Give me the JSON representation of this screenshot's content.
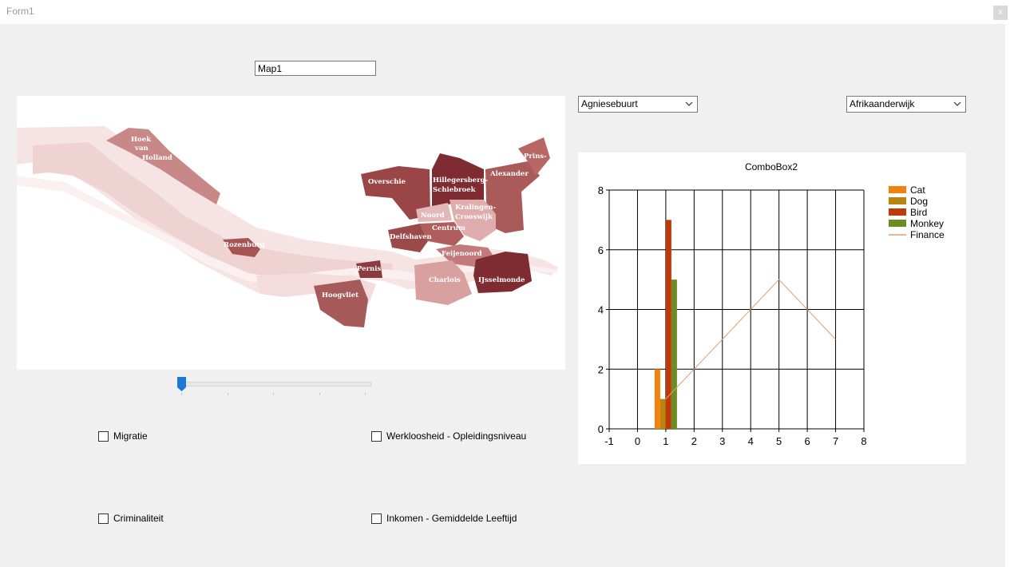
{
  "window": {
    "title": "Form1",
    "close_label": "x"
  },
  "textbox": {
    "value": "Map1"
  },
  "map": {
    "labels": {
      "hoek": [
        "Hoek",
        "van",
        "Holland"
      ],
      "rozenburg": "Rozenburg",
      "overschie": "Overschie",
      "hillegersberg": [
        "Hillegersberg-",
        "Schiebroek"
      ],
      "prins": "Prins-",
      "alexander": "Alexander",
      "noord": "Noord",
      "kralingen": [
        "Kralingen-",
        "Crooswijk"
      ],
      "centrum": "Centrum",
      "delfshaven": "Delfshaven",
      "feijenoord": "Feijenoord",
      "pernis": "Pernis",
      "charlois": "Charlois",
      "ijsselmonde": "IJsselmonde",
      "hoogvliet": "Hoogvliet"
    }
  },
  "combo1": {
    "selected": "Agniesebuurt"
  },
  "combo2": {
    "selected": "Afrikaanderwijk"
  },
  "checkboxes": {
    "migratie": "Migratie",
    "werkloosheid": "Werkloosheid - Opleidingsniveau",
    "criminaliteit": "Criminaliteit",
    "inkomen": "Inkomen - Gemiddelde Leeftijd"
  },
  "chart_data": {
    "type": "bar",
    "title": "ComboBox2",
    "xlim": [
      -1,
      8
    ],
    "ylim": [
      0,
      8
    ],
    "x_ticks": [
      "-1",
      "0",
      "1",
      "2",
      "3",
      "4",
      "5",
      "6",
      "7",
      "8"
    ],
    "y_ticks": [
      "0",
      "2",
      "4",
      "6",
      "8"
    ],
    "grid": true,
    "legend_position": "top-right",
    "series": [
      {
        "name": "Cat",
        "kind": "bar",
        "color": "#f0820f",
        "x": [
          1
        ],
        "values": [
          2
        ]
      },
      {
        "name": "Dog",
        "kind": "bar",
        "color": "#b8860b",
        "x": [
          1
        ],
        "values": [
          1
        ]
      },
      {
        "name": "Bird",
        "kind": "bar",
        "color": "#c0390b",
        "x": [
          1
        ],
        "values": [
          7
        ]
      },
      {
        "name": "Monkey",
        "kind": "bar",
        "color": "#6b8e23",
        "x": [
          1
        ],
        "values": [
          5
        ]
      },
      {
        "name": "Finance",
        "kind": "line",
        "color": "#e0a070",
        "x": [
          1,
          3,
          5,
          7
        ],
        "values": [
          1,
          3,
          5,
          3
        ]
      }
    ]
  }
}
